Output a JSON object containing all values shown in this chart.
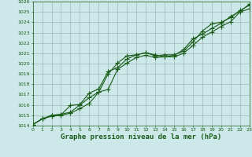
{
  "title": "Graphe pression niveau de la mer (hPa)",
  "bg_color": "#cce8e8",
  "grid_color": "#a0b8b8",
  "line_color": "#1a5c1a",
  "x_min": 0,
  "x_max": 23,
  "y_min": 1014,
  "y_max": 1026,
  "x_ticks": [
    0,
    1,
    2,
    3,
    4,
    5,
    6,
    7,
    8,
    9,
    10,
    11,
    12,
    13,
    14,
    15,
    16,
    17,
    18,
    19,
    20,
    21,
    22,
    23
  ],
  "y_ticks": [
    1014,
    1015,
    1016,
    1017,
    1018,
    1019,
    1020,
    1021,
    1022,
    1023,
    1024,
    1025,
    1026
  ],
  "line1_x": [
    0,
    1,
    2,
    3,
    4,
    5,
    6,
    7,
    8,
    9,
    10,
    11,
    12,
    13,
    14,
    15,
    16,
    17,
    18,
    19,
    20,
    21,
    22,
    23
  ],
  "line1_y": [
    1014.1,
    1014.65,
    1015.0,
    1015.1,
    1015.3,
    1016.0,
    1016.7,
    1017.25,
    1019.0,
    1020.05,
    1020.75,
    1020.85,
    1021.05,
    1020.75,
    1020.85,
    1020.85,
    1021.2,
    1022.1,
    1023.15,
    1023.85,
    1024.0,
    1024.45,
    1025.15,
    1025.65
  ],
  "line2_x": [
    0,
    1,
    2,
    3,
    4,
    5,
    6,
    7,
    8,
    9,
    10,
    11,
    12,
    13,
    14,
    15,
    16,
    17,
    18,
    19,
    20,
    21,
    22,
    23
  ],
  "line2_y": [
    1014.1,
    1014.65,
    1015.0,
    1015.05,
    1015.95,
    1016.05,
    1017.15,
    1017.55,
    1019.25,
    1019.6,
    1020.45,
    1020.85,
    1021.05,
    1020.85,
    1020.65,
    1020.8,
    1021.35,
    1022.4,
    1022.85,
    1023.4,
    1023.9,
    1024.55,
    1025.05,
    1025.75
  ],
  "line3_x": [
    0,
    1,
    2,
    3,
    4,
    5,
    6,
    7,
    8,
    9,
    10,
    11,
    12,
    13,
    14,
    15,
    16,
    17,
    18,
    19,
    20,
    21,
    22,
    23
  ],
  "line3_y": [
    1014.1,
    1014.65,
    1014.9,
    1015.0,
    1015.2,
    1015.65,
    1016.15,
    1017.25,
    1017.5,
    1019.45,
    1020.05,
    1020.6,
    1020.8,
    1020.6,
    1020.65,
    1020.65,
    1021.0,
    1021.75,
    1022.55,
    1023.05,
    1023.6,
    1024.05,
    1025.0,
    1025.3
  ],
  "marker": "+",
  "marker_size": 4,
  "line_width": 0.8,
  "title_fontsize": 6.5,
  "tick_fontsize": 4.5
}
